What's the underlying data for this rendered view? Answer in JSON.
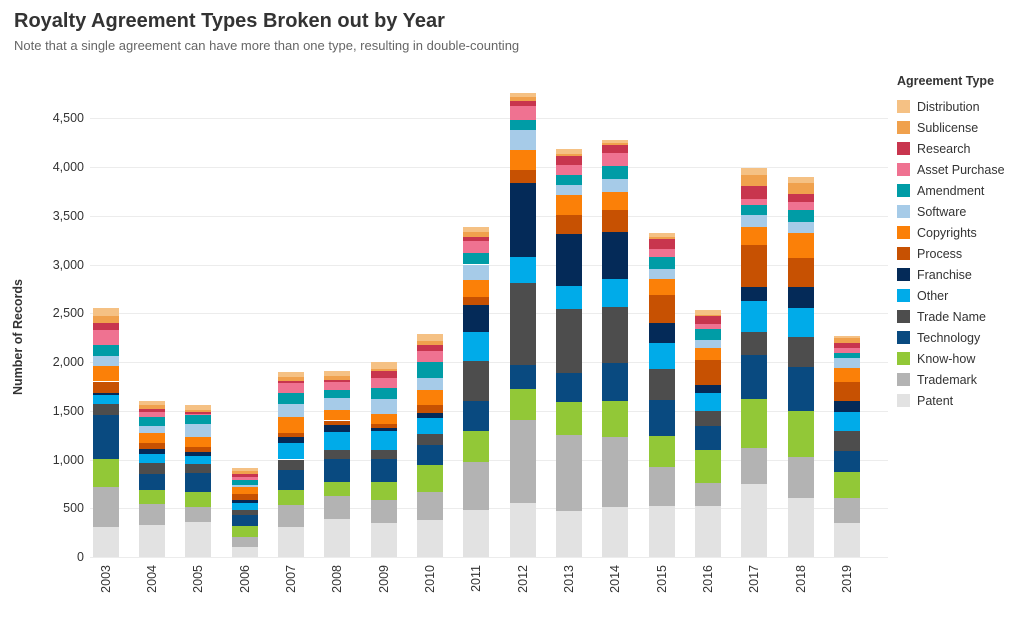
{
  "header": {
    "title": "Royalty Agreement Types Broken out by Year",
    "subtitle": "Note that a single agreement can have more than one type, resulting in double-counting"
  },
  "legend": {
    "title": "Agreement Type",
    "items": [
      {
        "label": "Distribution",
        "color": "#F5C184"
      },
      {
        "label": "Sublicense",
        "color": "#F0A14D"
      },
      {
        "label": "Research",
        "color": "#C8354E"
      },
      {
        "label": "Asset Purchase",
        "color": "#EF7291"
      },
      {
        "label": "Amendment",
        "color": "#009CA6"
      },
      {
        "label": "Software",
        "color": "#A6CBE8"
      },
      {
        "label": "Copyrights",
        "color": "#FB8008"
      },
      {
        "label": "Process",
        "color": "#C75102"
      },
      {
        "label": "Franchise",
        "color": "#042A58"
      },
      {
        "label": "Other",
        "color": "#00ABE9"
      },
      {
        "label": "Trade Name",
        "color": "#4D4D4D"
      },
      {
        "label": "Technology",
        "color": "#094A80"
      },
      {
        "label": "Know-how",
        "color": "#92C837"
      },
      {
        "label": "Trademark",
        "color": "#B3B3B3"
      },
      {
        "label": "Patent",
        "color": "#E2E2E2"
      }
    ]
  },
  "chart_data": {
    "type": "bar",
    "stacked": true,
    "title": "Royalty Agreement Types Broken out by Year",
    "xlabel": "",
    "ylabel": "Number of Records",
    "ylim": [
      0,
      4700
    ],
    "grid": "horizontal",
    "legend_position": "right",
    "stack_note": "Patent is the bottom segment; series listed top-of-legend first (Distribution is topmost segment of each bar)",
    "x": [
      "2003",
      "2004",
      "2005",
      "2006",
      "2007",
      "2008",
      "2009",
      "2010",
      "2011",
      "2012",
      "2013",
      "2014",
      "2015",
      "2016",
      "2017",
      "2018",
      "2019"
    ],
    "yticks": [
      0,
      500,
      1000,
      1500,
      2000,
      2500,
      3000,
      3500,
      4000,
      4500
    ],
    "ytick_labels": [
      "0",
      "500",
      "1,000",
      "1,500",
      "2,000",
      "2,500",
      "3,000",
      "3,500",
      "4,000",
      "4,500"
    ],
    "series": [
      {
        "name": "Distribution",
        "color": "#F5C184",
        "values": [
          80,
          40,
          55,
          25,
          45,
          45,
          70,
          70,
          50,
          40,
          50,
          30,
          40,
          45,
          70,
          60,
          25
        ]
      },
      {
        "name": "Sublicense",
        "color": "#F0A14D",
        "values": [
          75,
          40,
          20,
          35,
          40,
          45,
          25,
          50,
          45,
          45,
          20,
          15,
          20,
          15,
          110,
          115,
          55
        ]
      },
      {
        "name": "Research",
        "color": "#C8354E",
        "values": [
          70,
          25,
          15,
          25,
          25,
          25,
          70,
          60,
          45,
          45,
          85,
          90,
          110,
          85,
          130,
          80,
          50
        ]
      },
      {
        "name": "Asset Purchase",
        "color": "#EF7291",
        "values": [
          155,
          55,
          10,
          40,
          105,
          75,
          105,
          105,
          125,
          145,
          105,
          125,
          75,
          50,
          60,
          80,
          45
        ]
      },
      {
        "name": "Amendment",
        "color": "#009CA6",
        "values": [
          105,
          90,
          95,
          50,
          110,
          80,
          105,
          170,
          115,
          110,
          105,
          135,
          125,
          105,
          105,
          120,
          50
        ]
      },
      {
        "name": "Software",
        "color": "#A6CBE8",
        "values": [
          110,
          75,
          130,
          20,
          135,
          125,
          160,
          125,
          160,
          200,
          105,
          135,
          105,
          85,
          125,
          120,
          105
        ]
      },
      {
        "name": "Copyrights",
        "color": "#FB8008",
        "values": [
          155,
          105,
          105,
          70,
          165,
          110,
          105,
          155,
          170,
          205,
          205,
          190,
          160,
          120,
          180,
          255,
          145
        ]
      },
      {
        "name": "Process",
        "color": "#C75102",
        "values": [
          120,
          55,
          50,
          60,
          40,
          50,
          35,
          75,
          85,
          135,
          190,
          220,
          285,
          265,
          435,
          300,
          200
        ]
      },
      {
        "name": "Franchise",
        "color": "#042A58",
        "values": [
          15,
          55,
          45,
          30,
          60,
          70,
          35,
          55,
          275,
          755,
          535,
          480,
          210,
          75,
          145,
          210,
          110
        ]
      },
      {
        "name": "Other",
        "color": "#00ABE9",
        "values": [
          95,
          95,
          80,
          70,
          170,
          180,
          195,
          160,
          300,
          265,
          235,
          290,
          265,
          190,
          315,
          300,
          190
        ]
      },
      {
        "name": "Trade Name",
        "color": "#4D4D4D",
        "values": [
          115,
          110,
          90,
          55,
          105,
          90,
          90,
          115,
          410,
          845,
          660,
          575,
          315,
          155,
          235,
          310,
          205
        ]
      },
      {
        "name": "Technology",
        "color": "#094A80",
        "values": [
          445,
          165,
          195,
          115,
          210,
          240,
          240,
          205,
          310,
          250,
          295,
          395,
          370,
          240,
          450,
          445,
          220
        ]
      },
      {
        "name": "Know-how",
        "color": "#92C837",
        "values": [
          290,
          140,
          155,
          105,
          155,
          145,
          180,
          280,
          315,
          315,
          340,
          360,
          325,
          340,
          505,
          470,
          260
        ]
      },
      {
        "name": "Trademark",
        "color": "#B3B3B3",
        "values": [
          415,
          215,
          155,
          105,
          220,
          240,
          235,
          290,
          495,
          850,
          780,
          720,
          395,
          235,
          375,
          420,
          265
        ]
      },
      {
        "name": "Patent",
        "color": "#E2E2E2",
        "values": [
          305,
          330,
          360,
          105,
          310,
          385,
          350,
          375,
          480,
          555,
          470,
          515,
          525,
          525,
          745,
          610,
          345
        ]
      }
    ]
  }
}
